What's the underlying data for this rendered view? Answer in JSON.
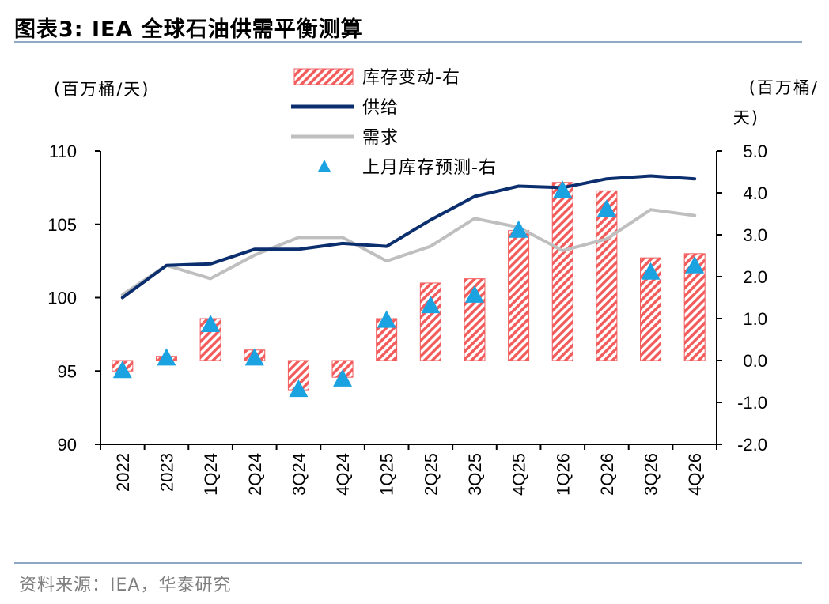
{
  "header": {
    "title": "图表3:  IEA 全球石油供需平衡测算"
  },
  "footer": {
    "source": "资料来源：IEA，华泰研究"
  },
  "colors": {
    "inventory_bar": "#f25c5c",
    "supply_line": "#0b2e6e",
    "demand_line": "#bfbfbf",
    "forecast_marker": "#1aa3e0",
    "rule": "#8fa8c4"
  },
  "chart_data": {
    "type": "bar+line",
    "categories": [
      "2022",
      "2023",
      "1Q24",
      "2Q24",
      "3Q24",
      "4Q24",
      "1Q25",
      "2Q25",
      "3Q25",
      "4Q25",
      "1Q26",
      "2Q26",
      "3Q26",
      "4Q26"
    ],
    "left_axis": {
      "unit": "(百万桶/天)",
      "min": 90,
      "max": 110,
      "ticks": [
        "110",
        "105",
        "100",
        "95",
        "90"
      ]
    },
    "right_axis": {
      "unit_line1": "(百万桶/",
      "unit_line2": "天)",
      "min": -2.0,
      "max": 5.0,
      "ticks": [
        "5.0",
        "4.0",
        "3.0",
        "2.0",
        "1.0",
        "0.0",
        "-1.0",
        "-2.0"
      ]
    },
    "legend": {
      "position": "top-center",
      "items": [
        "库存变动-右",
        "供给",
        "需求",
        "上月库存预测-右"
      ]
    },
    "series": [
      {
        "name": "库存变动-右",
        "type": "bar",
        "axis": "right",
        "values": [
          -0.25,
          0.1,
          1.0,
          0.25,
          -0.7,
          -0.4,
          1.0,
          1.85,
          1.95,
          3.1,
          4.25,
          4.05,
          2.45,
          2.55
        ]
      },
      {
        "name": "供给",
        "type": "line",
        "axis": "left",
        "values": [
          100.0,
          102.2,
          102.3,
          103.3,
          103.3,
          103.7,
          103.5,
          105.3,
          106.9,
          107.6,
          107.5,
          108.1,
          108.3,
          108.1
        ]
      },
      {
        "name": "需求",
        "type": "line",
        "axis": "left",
        "values": [
          100.2,
          102.2,
          101.3,
          102.9,
          104.1,
          104.1,
          102.5,
          103.5,
          105.4,
          104.8,
          103.2,
          104.0,
          106.0,
          105.6
        ]
      },
      {
        "name": "上月库存预测-右",
        "type": "scatter",
        "axis": "right",
        "values": [
          -0.25,
          0.05,
          0.85,
          0.05,
          -0.7,
          -0.45,
          0.95,
          1.3,
          1.55,
          3.1,
          4.05,
          3.6,
          2.1,
          2.25
        ]
      }
    ]
  }
}
